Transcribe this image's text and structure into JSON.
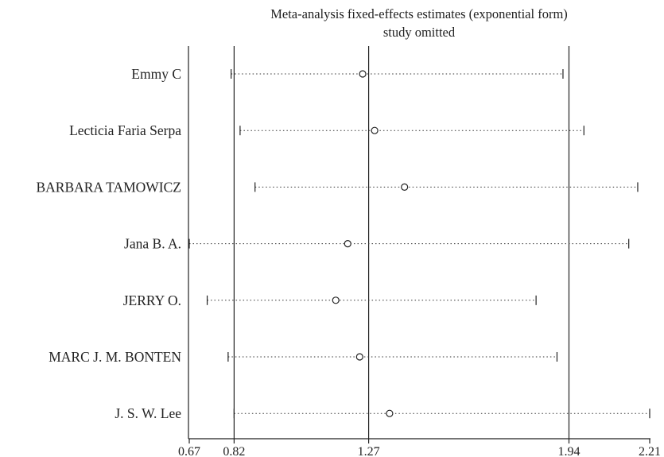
{
  "chart_data": {
    "type": "forest",
    "title": "Meta-analysis fixed-effects estimates (exponential form)",
    "subtitle": "study omitted",
    "xlim": [
      0.67,
      2.21
    ],
    "xticks": [
      "0.67",
      "0.82",
      "1.27",
      "1.94",
      "2.21"
    ],
    "xtick_values": [
      0.67,
      0.82,
      1.27,
      1.94,
      2.21
    ],
    "reference_lines": [
      0.82,
      1.27,
      1.94
    ],
    "studies": [
      {
        "name": "Emmy C",
        "estimate": 1.25,
        "lower": 0.81,
        "upper": 1.92
      },
      {
        "name": "Lecticia Faria Serpa",
        "estimate": 1.29,
        "lower": 0.84,
        "upper": 1.99
      },
      {
        "name": "BARBARA TAMOWICZ",
        "estimate": 1.39,
        "lower": 0.89,
        "upper": 2.17
      },
      {
        "name": "Jana B. A.",
        "estimate": 1.2,
        "lower": 0.67,
        "upper": 2.14
      },
      {
        "name": "JERRY O.",
        "estimate": 1.16,
        "lower": 0.73,
        "upper": 1.83
      },
      {
        "name": "MARC J. M. BONTEN",
        "estimate": 1.24,
        "lower": 0.8,
        "upper": 1.9
      },
      {
        "name": "J. S. W. Lee",
        "estimate": 1.34,
        "lower": 0.82,
        "upper": 2.21
      }
    ]
  }
}
